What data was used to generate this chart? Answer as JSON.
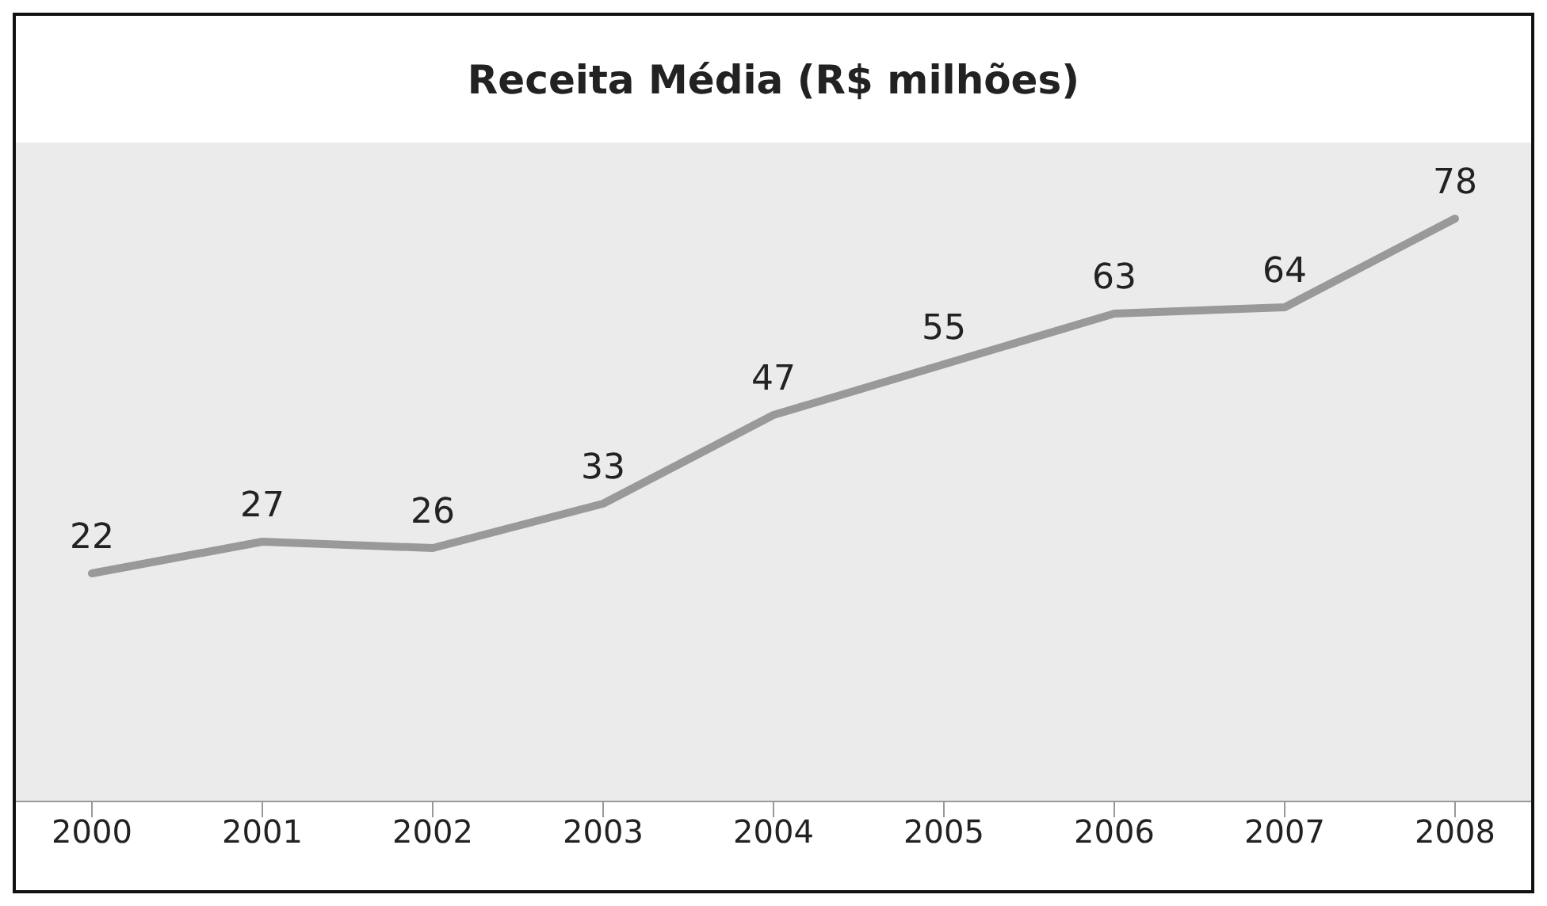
{
  "chart_data": {
    "type": "line",
    "title": "Receita Média (R$ milhões)",
    "categories": [
      "2000",
      "2001",
      "2002",
      "2003",
      "2004",
      "2005",
      "2006",
      "2007",
      "2008"
    ],
    "series": [
      {
        "color": "#999999",
        "values": [
          22,
          27,
          26,
          33,
          47,
          55,
          63,
          64,
          78
        ]
      }
    ],
    "data_labels": true,
    "marker": "none",
    "line_style": "solid"
  }
}
